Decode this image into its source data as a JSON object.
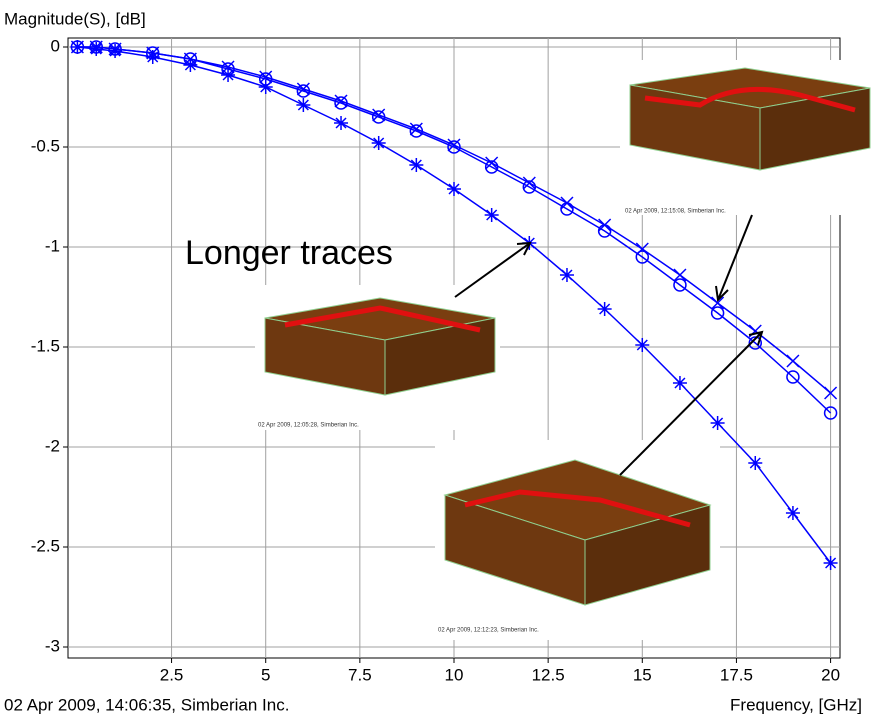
{
  "chart_data": {
    "type": "line",
    "y_label": "Magnitude(S), [dB]",
    "x_label": "Frequency, [GHz]",
    "footnote": "02 Apr 2009, 14:06:35, Simberian Inc.",
    "annotation": "Longer traces",
    "inset_captions": [
      "02 Apr 2009, 12:15:08, Simberian Inc.",
      "02 Apr 2009, 12:05:28, Simberian Inc.",
      "02 Apr 2009, 12:12:23, Simberian Inc."
    ],
    "x": [
      0,
      0.5,
      1,
      2,
      3,
      4,
      5,
      6,
      7,
      8,
      9,
      10,
      11,
      12,
      13,
      14,
      15,
      16,
      17,
      18,
      19,
      20
    ],
    "series": [
      {
        "color": "#0000ff",
        "marker": "star",
        "values": [
          0,
          -0.01,
          -0.02,
          -0.05,
          -0.09,
          -0.14,
          -0.2,
          -0.29,
          -0.38,
          -0.48,
          -0.59,
          -0.71,
          -0.84,
          -0.98,
          -1.14,
          -1.31,
          -1.49,
          -1.68,
          -1.88,
          -2.08,
          -2.33,
          -2.58
        ]
      },
      {
        "color": "#0000ff",
        "marker": "circle",
        "values": [
          0,
          0,
          -0.01,
          -0.03,
          -0.06,
          -0.11,
          -0.16,
          -0.22,
          -0.28,
          -0.35,
          -0.42,
          -0.5,
          -0.6,
          -0.7,
          -0.81,
          -0.92,
          -1.05,
          -1.19,
          -1.33,
          -1.48,
          -1.65,
          -1.83
        ]
      },
      {
        "color": "#0000ff",
        "marker": "cross",
        "values": [
          0,
          0,
          -0.01,
          -0.03,
          -0.06,
          -0.1,
          -0.15,
          -0.21,
          -0.27,
          -0.34,
          -0.41,
          -0.49,
          -0.58,
          -0.68,
          -0.78,
          -0.89,
          -1.01,
          -1.14,
          -1.28,
          -1.42,
          -1.57,
          -1.73
        ]
      }
    ],
    "xlim": [
      -0.25,
      20.25
    ],
    "ylim": [
      -3.055,
      0.045
    ],
    "xticks": [
      2.5,
      5,
      7.5,
      10,
      12.5,
      15,
      17.5,
      20
    ],
    "yticks": [
      0,
      -0.5,
      -1,
      -1.5,
      -2,
      -2.5,
      -3
    ],
    "grid": true
  }
}
